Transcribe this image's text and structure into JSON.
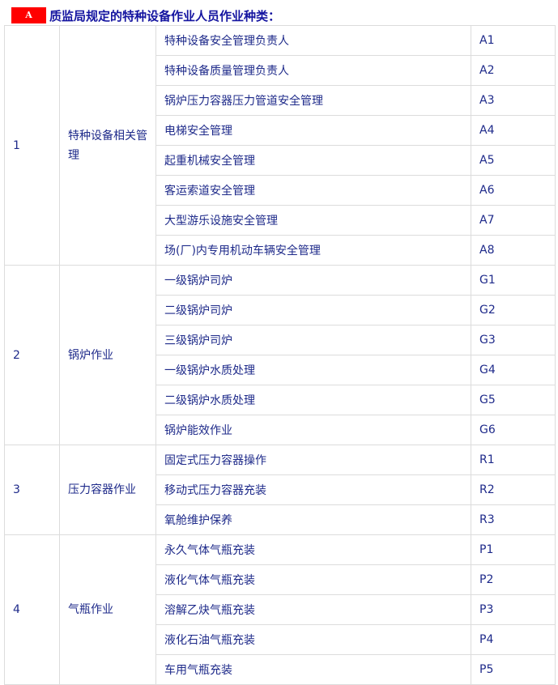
{
  "title": {
    "badge": "A",
    "text": "质监局规定的特种设备作业人员作业种类："
  },
  "groups": [
    {
      "no": "1",
      "category": "特种设备相关管理",
      "items": [
        {
          "name": "特种设备安全管理负责人",
          "code": "A1"
        },
        {
          "name": "特种设备质量管理负责人",
          "code": "A2"
        },
        {
          "name": "锅炉压力容器压力管道安全管理",
          "code": "A3"
        },
        {
          "name": "电梯安全管理",
          "code": "A4"
        },
        {
          "name": "起重机械安全管理",
          "code": "A5"
        },
        {
          "name": "客运索道安全管理",
          "code": "A6"
        },
        {
          "name": "大型游乐设施安全管理",
          "code": "A7"
        },
        {
          "name": "场(厂)内专用机动车辆安全管理",
          "code": "A8"
        }
      ]
    },
    {
      "no": "2",
      "category": "锅炉作业",
      "items": [
        {
          "name": "一级锅炉司炉",
          "code": "G1"
        },
        {
          "name": "二级锅炉司炉",
          "code": "G2"
        },
        {
          "name": "三级锅炉司炉",
          "code": "G3"
        },
        {
          "name": "一级锅炉水质处理",
          "code": "G4"
        },
        {
          "name": "二级锅炉水质处理",
          "code": "G5"
        },
        {
          "name": "锅炉能效作业",
          "code": "G6"
        }
      ]
    },
    {
      "no": "3",
      "category": "压力容器作业",
      "items": [
        {
          "name": "固定式压力容器操作",
          "code": "R1"
        },
        {
          "name": "移动式压力容器充装",
          "code": "R2"
        },
        {
          "name": "氧舱维护保养",
          "code": "R3"
        }
      ]
    },
    {
      "no": "4",
      "category": "气瓶作业",
      "items": [
        {
          "name": "永久气体气瓶充装",
          "code": "P1"
        },
        {
          "name": "液化气体气瓶充装",
          "code": "P2"
        },
        {
          "name": "溶解乙炔气瓶充装",
          "code": "P3"
        },
        {
          "name": "液化石油气瓶充装",
          "code": "P4"
        },
        {
          "name": "车用气瓶充装",
          "code": "P5"
        }
      ]
    }
  ]
}
